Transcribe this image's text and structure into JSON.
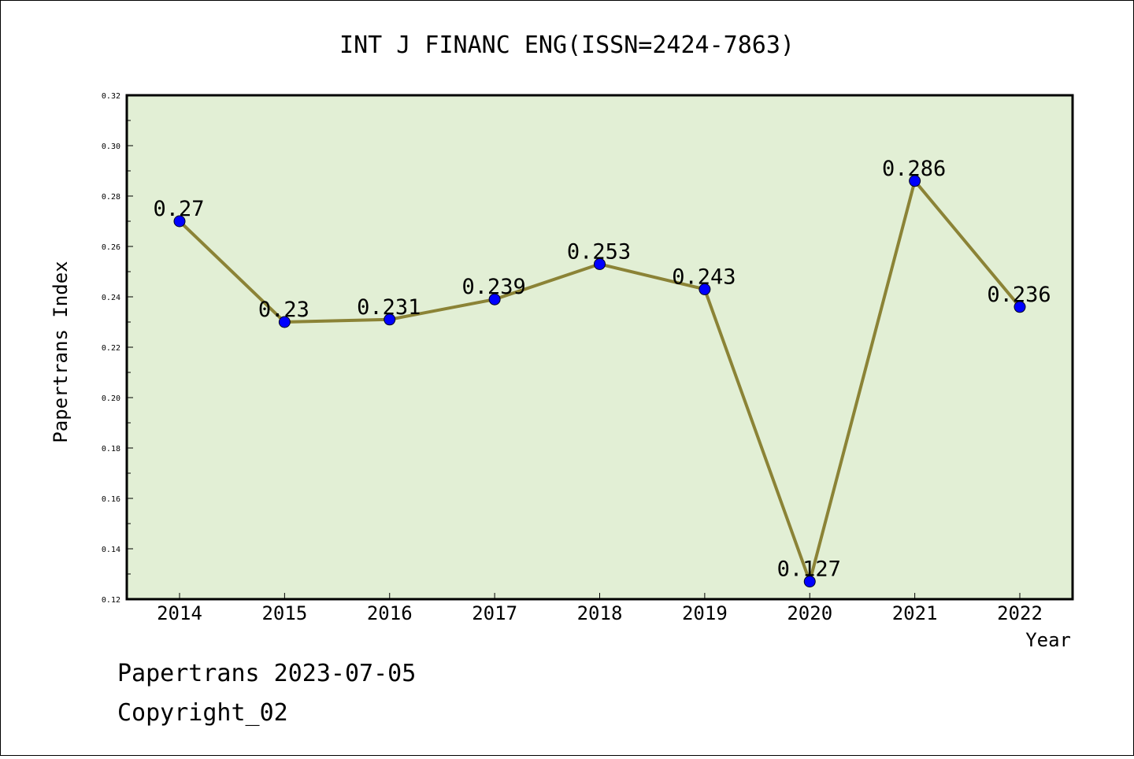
{
  "chart_data": {
    "type": "line",
    "title": "INT J FINANC ENG(ISSN=2424-7863)",
    "xlabel": "Year",
    "ylabel": "Papertrans Index",
    "categories": [
      "2014",
      "2015",
      "2016",
      "2017",
      "2018",
      "2019",
      "2020",
      "2021",
      "2022"
    ],
    "series": [
      {
        "values": [
          0.27,
          0.23,
          0.231,
          0.239,
          0.253,
          0.243,
          0.127,
          0.286,
          0.236
        ]
      }
    ],
    "data_labels": [
      "0.27",
      "0.23",
      "0.231",
      "0.239",
      "0.253",
      "0.243",
      "0.127",
      "0.286",
      "0.236"
    ],
    "ylim": [
      0.12,
      0.32
    ],
    "yticks": [
      "0.12",
      "0.14",
      "0.16",
      "0.18",
      "0.20",
      "0.22",
      "0.24",
      "0.26",
      "0.28",
      "0.30",
      "0.32"
    ],
    "grid": false,
    "legend": "none",
    "colors": {
      "plot_background": "#e2efd5",
      "line": "#8b8336",
      "marker": "#0000ff"
    }
  },
  "footer": {
    "line1": "Papertrans 2023-07-05",
    "line2": "Copyright_02"
  }
}
